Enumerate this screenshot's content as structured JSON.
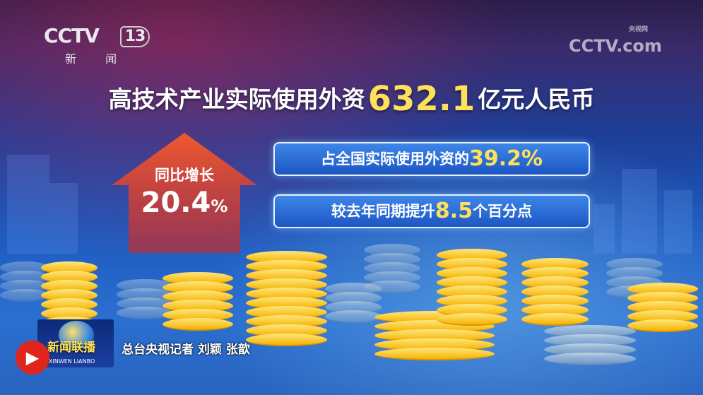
{
  "channel_logo": {
    "brand": "CCTV",
    "number": "13",
    "name": "新 闻"
  },
  "watermark": {
    "brand": "CCTV.com",
    "cn": "央视网"
  },
  "headline": {
    "prefix": "高技术产业实际使用外资",
    "value": "632.1",
    "suffix": "亿元人民币"
  },
  "growth": {
    "label": "同比增长",
    "value": "20.4",
    "unit": "%"
  },
  "stat_boxes": [
    {
      "prefix": "占全国实际使用外资的",
      "value": "39.2%",
      "suffix": ""
    },
    {
      "prefix": "较去年同期提升",
      "value": "8.5",
      "suffix": "个百分点"
    }
  ],
  "program": {
    "name": "新闻联播",
    "pinyin": "XINWEN LIANBO"
  },
  "caption": "总台央视记者 刘颖 张歆",
  "colors": {
    "accent_yellow": "#ffe05a",
    "arrow_red": "#e8402a",
    "box_blue": "#2a6ad8"
  }
}
